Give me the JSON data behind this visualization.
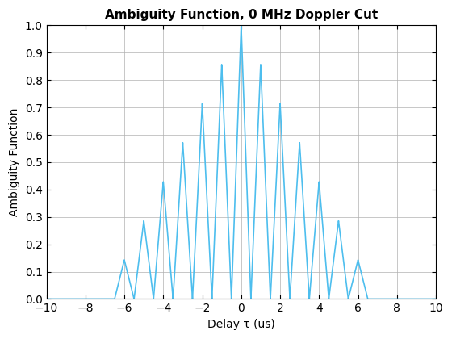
{
  "title": "Ambiguity Function, 0 MHz Doppler Cut",
  "xlabel": "Delay τ (us)",
  "ylabel": "Ambiguity Function",
  "line_color": "#4DBEEE",
  "line_width": 1.2,
  "xlim": [
    -10,
    10
  ],
  "ylim": [
    0,
    1
  ],
  "xticks": [
    -10,
    -8,
    -6,
    -4,
    -2,
    0,
    2,
    4,
    6,
    8,
    10
  ],
  "yticks": [
    0.0,
    0.1,
    0.2,
    0.3,
    0.4,
    0.5,
    0.6,
    0.7,
    0.8,
    0.9,
    1.0
  ],
  "grid": true,
  "background_color": "#ffffff",
  "num_pulses": 7,
  "T_r": 1.0,
  "tau_p": 0.5,
  "tau_range": [
    -10,
    10
  ],
  "num_points": 50000
}
